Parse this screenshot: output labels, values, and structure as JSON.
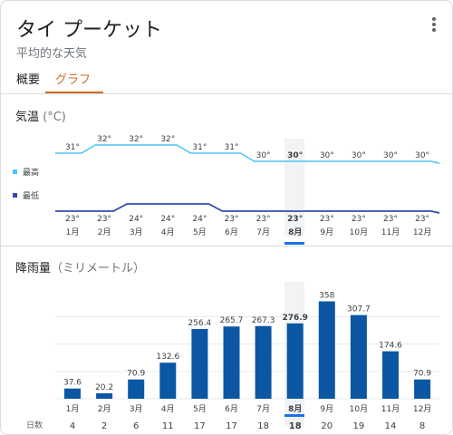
{
  "header": {
    "title": "タイ プーケット",
    "subtitle": "平均的な天気"
  },
  "tabs": [
    {
      "label": "概要"
    },
    {
      "label": "グラフ"
    }
  ],
  "temperature": {
    "label": "気温",
    "unit": "(°C)",
    "legend_high": "最高",
    "legend_low": "最低",
    "high_color": "#4fc3f7",
    "low_color": "#3949ab"
  },
  "rainfall": {
    "label": "降雨量",
    "unit": "（ミリメートル）",
    "bar_color": "#0b57a4",
    "days_label": "日数"
  },
  "selected_month_index": 7,
  "months": [
    "1月",
    "2月",
    "3月",
    "4月",
    "5月",
    "6月",
    "7月",
    "8月",
    "9月",
    "10月",
    "11月",
    "12月"
  ],
  "chart_data": [
    {
      "type": "line",
      "categories": [
        "1月",
        "2月",
        "3月",
        "4月",
        "5月",
        "6月",
        "7月",
        "8月",
        "9月",
        "10月",
        "11月",
        "12月"
      ],
      "series": [
        {
          "name": "最高",
          "values": [
            31,
            32,
            32,
            32,
            31,
            31,
            30,
            30,
            30,
            30,
            30,
            30
          ],
          "labels": [
            "31°",
            "32°",
            "32°",
            "32°",
            "31°",
            "31°",
            "30°",
            "30°",
            "30°",
            "30°",
            "30°",
            "30°"
          ]
        },
        {
          "name": "最低",
          "values": [
            23,
            23,
            24,
            24,
            24,
            23,
            23,
            23,
            23,
            23,
            23,
            23
          ],
          "labels": [
            "23°",
            "23°",
            "24°",
            "24°",
            "24°",
            "23°",
            "23°",
            "23°",
            "23°",
            "23°",
            "23°",
            "23°"
          ]
        }
      ]
    },
    {
      "type": "bar",
      "categories": [
        "1月",
        "2月",
        "3月",
        "4月",
        "5月",
        "6月",
        "7月",
        "8月",
        "9月",
        "10月",
        "11月",
        "12月"
      ],
      "values": [
        37.6,
        20.2,
        70.9,
        132.6,
        256.4,
        265.7,
        267.3,
        276.9,
        358,
        307.7,
        174.6,
        70.9
      ],
      "labels": [
        "37.6",
        "20.2",
        "70.9",
        "132.6",
        "256.4",
        "265.7",
        "267.3",
        "276.9",
        "358",
        "307.7",
        "174.6",
        "70.9"
      ],
      "ylim": [
        0,
        400
      ],
      "days": [
        "4",
        "2",
        "6",
        "11",
        "17",
        "17",
        "18",
        "18",
        "20",
        "19",
        "14",
        "8"
      ]
    }
  ]
}
